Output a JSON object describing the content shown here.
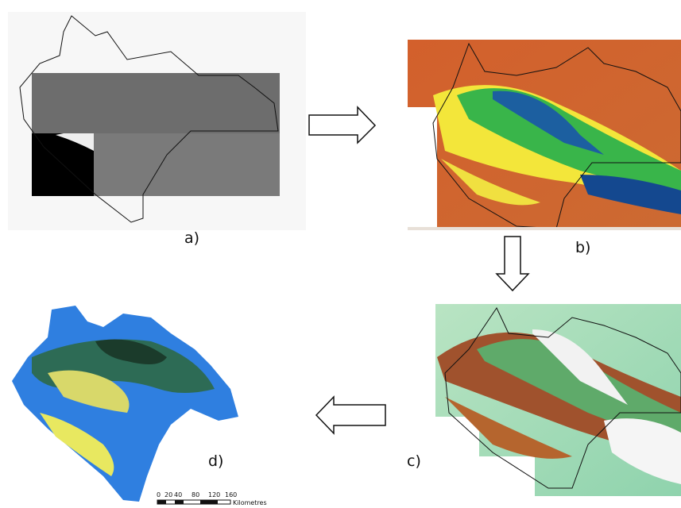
{
  "panels": [
    {
      "label": "a)"
    },
    {
      "label": "b)"
    },
    {
      "label": "c)"
    },
    {
      "label": "d)"
    }
  ],
  "scale_bar": {
    "labels": [
      "0",
      "20",
      "40",
      "80",
      "120",
      "160"
    ],
    "unit": "Kilometres"
  }
}
